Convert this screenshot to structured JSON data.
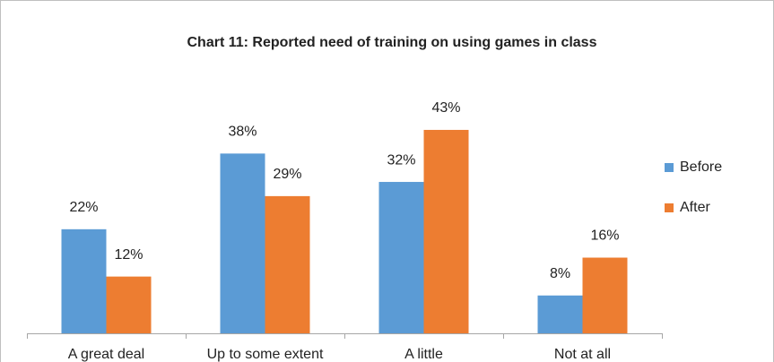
{
  "chart_data": {
    "type": "bar",
    "title": "Chart 11: Reported need of training on  using games in class",
    "categories": [
      "A great deal",
      "Up to some extent",
      "A little",
      "Not at all"
    ],
    "series": [
      {
        "name": "Before",
        "color": "#5b9bd5",
        "values": [
          22,
          38,
          32,
          8
        ],
        "value_labels": [
          "22%",
          "38%",
          "32%",
          "8%"
        ]
      },
      {
        "name": "After",
        "color": "#ed7d31",
        "values": [
          12,
          29,
          43,
          16
        ],
        "value_labels": [
          "12%",
          "29%",
          "43%",
          "16%"
        ]
      }
    ],
    "legend": "right"
  }
}
